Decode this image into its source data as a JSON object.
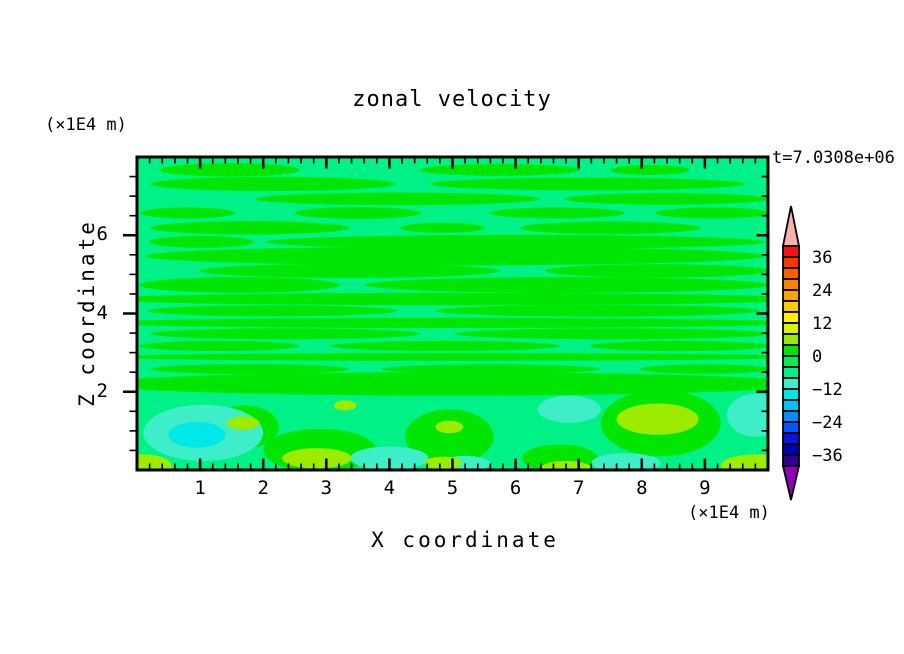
{
  "chart_data": {
    "type": "filled_contour",
    "title": "zonal velocity",
    "time_annotation": "t=7.0308e+06",
    "xlabel": "X coordinate",
    "ylabel": "Z coordinate",
    "x_unit": "(×1E4 m)",
    "y_unit": "(×1E4 m)",
    "xlim": [
      0,
      10
    ],
    "ylim": [
      0,
      8
    ],
    "x_major_ticks": [
      "1",
      "2",
      "3",
      "4",
      "5",
      "6",
      "7",
      "8",
      "9"
    ],
    "x_minor_step": 0.2,
    "y_major_ticks": [
      "2",
      "4",
      "6"
    ],
    "y_minor_step": 0.5,
    "grid": false,
    "colorbar": {
      "position": "right",
      "labels": [
        "36",
        "24",
        "12",
        "0",
        "−12",
        "−24",
        "−36"
      ],
      "level_min": -40,
      "level_max": 40,
      "interval": 4,
      "segment_colors_top_to_bottom": [
        "#fa1010",
        "#ff3300",
        "#ff5c00",
        "#ff8000",
        "#ffa300",
        "#ffc900",
        "#fff000",
        "#d6f400",
        "#96ec00",
        "#00e602",
        "#00ee58",
        "#00f186",
        "#3deec8",
        "#00e9e9",
        "#00c0ff",
        "#008ffd",
        "#0057ff",
        "#0018e0",
        "#0000b8",
        "#2e0099"
      ],
      "over_arrow_color": "#f6b1b1",
      "under_arrow_color": "#9000b8",
      "outline_color": "#000000"
    },
    "field": {
      "description": "Zonal velocity section: mostly weak flow between -4 and +4; horizontal alternating streaks of the 0..4 band over a -4..0 background; convective cells below z=2 reaching -12..-8 (cyan) and 4..8 (yellow-green).",
      "background_band": "-4..0",
      "background_color": "#00f186",
      "band_values": {
        "p1": "0..4",
        "p2": "4..8",
        "m2": "-8..-4",
        "m3": "-12..-8"
      },
      "band_colors": {
        "p1": "#00e602",
        "p2": "#9dec00",
        "m2": "#3deec8",
        "m3": "#00e9e9"
      },
      "blobs": [
        [
          "p1",
          1.47,
          7.67,
          1.11,
          0.17
        ],
        [
          "p1",
          5.75,
          7.67,
          1.27,
          0.15
        ],
        [
          "p1",
          8.13,
          7.67,
          0.63,
          0.13
        ],
        [
          "p1",
          2.15,
          7.31,
          1.94,
          0.18
        ],
        [
          "p1",
          7.14,
          7.31,
          2.5,
          0.16
        ],
        [
          "p1",
          4.13,
          6.93,
          2.26,
          0.16
        ],
        [
          "p1",
          8.4,
          6.93,
          1.63,
          0.15
        ],
        [
          "p1",
          0.8,
          6.57,
          0.75,
          0.14
        ],
        [
          "p1",
          3.5,
          6.57,
          1.0,
          0.15
        ],
        [
          "p1",
          6.66,
          6.57,
          1.07,
          0.14
        ],
        [
          "p1",
          9.12,
          6.57,
          0.91,
          0.14
        ],
        [
          "p1",
          1.79,
          6.19,
          1.58,
          0.17
        ],
        [
          "p1",
          4.84,
          6.19,
          0.67,
          0.13
        ],
        [
          "p1",
          7.5,
          6.19,
          1.43,
          0.16
        ],
        [
          "p1",
          1.02,
          5.83,
          0.83,
          0.15
        ],
        [
          "p1",
          5.99,
          5.83,
          3.96,
          0.18
        ],
        [
          "p1",
          5.04,
          5.47,
          4.91,
          0.24
        ],
        [
          "p1",
          3.37,
          5.09,
          2.38,
          0.18
        ],
        [
          "p1",
          8.25,
          5.09,
          1.78,
          0.17
        ],
        [
          "p1",
          1.63,
          4.73,
          1.59,
          0.2
        ],
        [
          "p1",
          6.82,
          4.73,
          3.21,
          0.2
        ],
        [
          "p1",
          5.04,
          4.37,
          5.6,
          0.16
        ],
        [
          "p1",
          2.15,
          4.07,
          1.98,
          0.14
        ],
        [
          "p1",
          7.3,
          4.07,
          2.58,
          0.15
        ],
        [
          "p1",
          4.96,
          3.76,
          5.6,
          0.13
        ],
        [
          "p1",
          2.35,
          3.48,
          2.14,
          0.14
        ],
        [
          "p1",
          7.54,
          3.48,
          2.5,
          0.14
        ],
        [
          "p1",
          1.31,
          3.17,
          1.27,
          0.13
        ],
        [
          "p1",
          4.88,
          3.17,
          1.82,
          0.13
        ],
        [
          "p1",
          8.6,
          3.17,
          1.43,
          0.13
        ],
        [
          "p1",
          5.04,
          2.89,
          5.6,
          0.1
        ],
        [
          "p1",
          1.79,
          2.58,
          1.58,
          0.13
        ],
        [
          "p1",
          5.6,
          2.58,
          1.74,
          0.12
        ],
        [
          "p1",
          9.0,
          2.58,
          1.03,
          0.12
        ],
        [
          "p1",
          5.0,
          2.2,
          5.6,
          0.3
        ],
        [
          "p1",
          1.7,
          1.1,
          0.55,
          0.55
        ],
        [
          "p1",
          2.9,
          0.5,
          0.9,
          0.55
        ],
        [
          "p1",
          4.95,
          0.85,
          0.7,
          0.7
        ],
        [
          "p1",
          8.3,
          1.2,
          0.95,
          0.85
        ],
        [
          "p1",
          6.7,
          0.3,
          0.6,
          0.35
        ],
        [
          "m2",
          1.05,
          0.95,
          0.95,
          0.72
        ],
        [
          "m2",
          4.0,
          0.3,
          0.62,
          0.3
        ],
        [
          "m2",
          6.85,
          1.55,
          0.5,
          0.35
        ],
        [
          "m2",
          7.75,
          0.18,
          0.55,
          0.25
        ],
        [
          "m2",
          9.8,
          1.4,
          0.45,
          0.55
        ],
        [
          "m2",
          5.2,
          0.16,
          0.4,
          0.2
        ],
        [
          "m3",
          0.95,
          0.9,
          0.45,
          0.33
        ],
        [
          "p2",
          1.68,
          1.2,
          0.26,
          0.17
        ],
        [
          "p2",
          2.85,
          0.3,
          0.55,
          0.26
        ],
        [
          "p2",
          4.95,
          1.1,
          0.22,
          0.16
        ],
        [
          "p2",
          4.85,
          0.18,
          0.3,
          0.16
        ],
        [
          "p2",
          8.25,
          1.3,
          0.65,
          0.4
        ],
        [
          "p2",
          0.1,
          0.1,
          0.45,
          0.3
        ],
        [
          "p2",
          9.85,
          0.12,
          0.6,
          0.28
        ],
        [
          "p2",
          6.8,
          0.05,
          0.4,
          0.18
        ],
        [
          "p2",
          3.3,
          1.65,
          0.18,
          0.13
        ]
      ]
    }
  }
}
